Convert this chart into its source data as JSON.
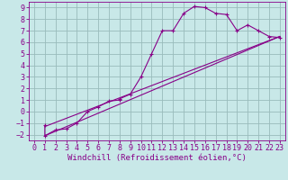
{
  "xlabel": "Windchill (Refroidissement éolien,°C)",
  "ylabel": "",
  "xlim": [
    -0.5,
    23.5
  ],
  "ylim": [
    -2.5,
    9.5
  ],
  "xticks": [
    0,
    1,
    2,
    3,
    4,
    5,
    6,
    7,
    8,
    9,
    10,
    11,
    12,
    13,
    14,
    15,
    16,
    17,
    18,
    19,
    20,
    21,
    22,
    23
  ],
  "yticks": [
    -2,
    -1,
    0,
    1,
    2,
    3,
    4,
    5,
    6,
    7,
    8,
    9
  ],
  "bg_color": "#c8e8e8",
  "line_color": "#880088",
  "grid_color": "#99bbbb",
  "curve_x": [
    1,
    1,
    2,
    3,
    4,
    5,
    6,
    7,
    8,
    8,
    9,
    10,
    11,
    12,
    13,
    14,
    15,
    16,
    17,
    18,
    19,
    20,
    21,
    22,
    23
  ],
  "curve_y": [
    -1.2,
    -2.1,
    -1.6,
    -1.5,
    -1.0,
    0.0,
    0.4,
    0.9,
    1.0,
    1.1,
    1.5,
    3.0,
    5.0,
    7.0,
    7.0,
    8.5,
    9.1,
    9.0,
    8.5,
    8.4,
    7.0,
    7.5,
    7.0,
    6.5,
    6.4
  ],
  "regline1_x": [
    1,
    23
  ],
  "regline1_y": [
    -1.3,
    6.5
  ],
  "regline2_x": [
    1,
    23
  ],
  "regline2_y": [
    -2.1,
    6.5
  ],
  "font_family": "monospace",
  "xlabel_fontsize": 6.5,
  "tick_fontsize": 6.0
}
